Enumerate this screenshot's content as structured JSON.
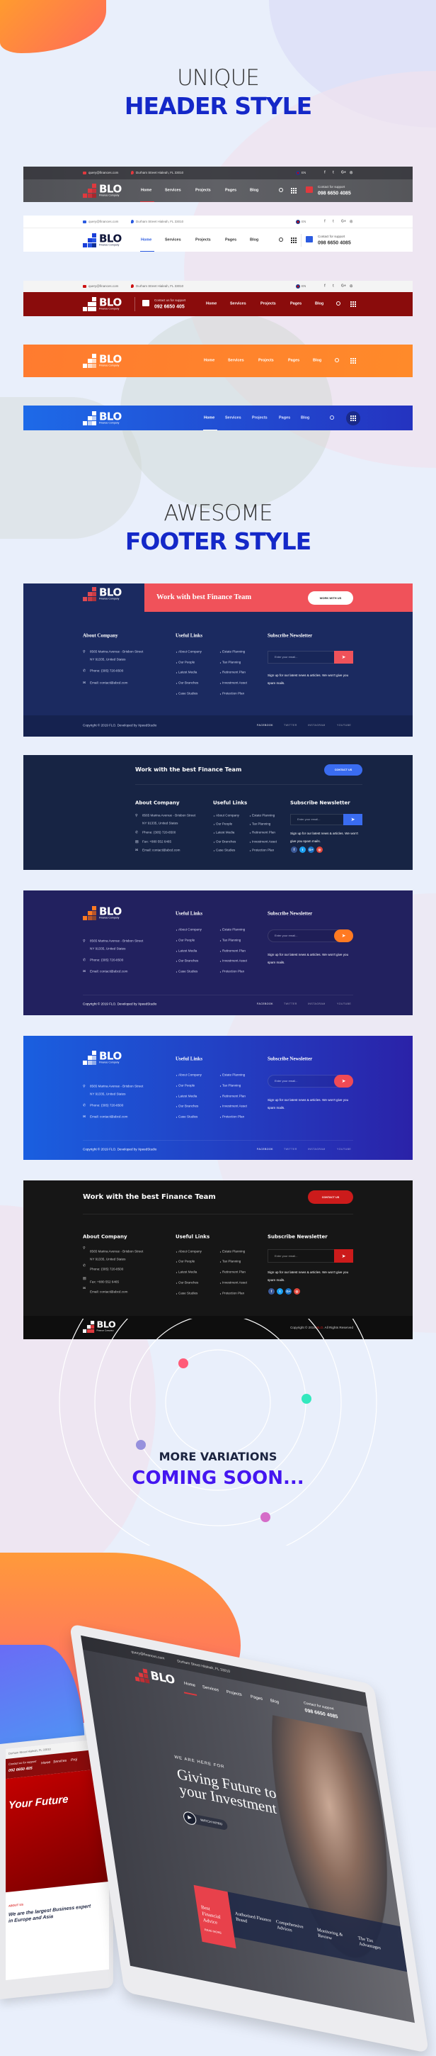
{
  "header_section": {
    "title_light": "UNIQUE",
    "title_bold": "HEADER STYLE"
  },
  "logo": {
    "name": "BLO",
    "tagline": "Finance Company"
  },
  "header_common": {
    "email": "query@finances.com",
    "address": "Durham Street Hialeah, FL 33010",
    "language": "EN",
    "social_icons": [
      "facebook-icon",
      "twitter-icon",
      "google-plus-icon",
      "instagram-icon"
    ],
    "social_glyphs": [
      "f",
      "t",
      "G+",
      "◎"
    ],
    "nav": [
      "Home",
      "Services",
      "Projects",
      "Pages",
      "Blog"
    ],
    "support": {
      "label": "Contact for support",
      "phone": "098 6650 4085"
    },
    "support_alt": {
      "label": "Contact us for support",
      "phone": "092 6650 405"
    }
  },
  "headers": [
    {
      "style": "dark",
      "active": "Home",
      "accent": "#e0393e"
    },
    {
      "style": "light",
      "active": "Home",
      "accent": "#2b5be0"
    },
    {
      "style": "maroon",
      "active": "Home",
      "accent": "#8a0c0c"
    },
    {
      "style": "orange",
      "active": "Home",
      "accent": "#ff7f2a"
    },
    {
      "style": "blue",
      "active": "Home",
      "accent": "#1f5fe4"
    }
  ],
  "footer_section": {
    "title_light": "AWESOME",
    "title_bold": "FOOTER STYLE"
  },
  "footer_common": {
    "about_title": "About Company",
    "address_line1": "8565 Marina Avenue - Brisbon Street",
    "address_line2": "NY 91335, United States",
    "phone": "Phone: (305) 720-8500",
    "fax": "Fax: +880 552 6465",
    "email": "Email: contact@abcd.com",
    "links_title": "Useful Links",
    "links_col1": [
      "About Company",
      "Our People",
      "Latest Media",
      "Our Branches",
      "Case Studies"
    ],
    "links_col2": [
      "Estate Planning",
      "Tax Planning",
      "Retirement Plan",
      "Investment Asset",
      "Protection Plan"
    ],
    "newsletter_title": "Subscribe Newsletter",
    "email_placeholder": "Enter your email...",
    "newsletter_text": "Sign up for our latest news & articles. We won't give you spam mails.",
    "social_links": [
      "FACEBOOK",
      "TWITTER",
      "INSTAGRAM",
      "YOUTUBE"
    ],
    "copyright": "Copyright © 2019 FLO. Developed by XpeedStudio",
    "copyright_alt": {
      "prefix": "Copyright © 2019 ",
      "brand": "BLO",
      "suffix": ". All Rights Reserved"
    }
  },
  "footers": [
    {
      "style": "navy-band",
      "cta": "Work with best Finance Team",
      "cta_button": "WORK WITH US",
      "accent": "#f0525a"
    },
    {
      "style": "dark-navy",
      "cta": "Work with the best Finance Team",
      "cta_button": "CONTACT US",
      "accent": "#3a6cf0"
    },
    {
      "style": "indigo",
      "accent": "#ff7a22"
    },
    {
      "style": "blue-gradient",
      "accent": "#f04a55"
    },
    {
      "style": "black",
      "cta": "Work with the best Finance Team",
      "cta_button": "CONTACT US",
      "accent": "#cc1b1b"
    }
  ],
  "coming_soon": {
    "line1": "MORE VARIATIONS",
    "line2": "COMING SOON..."
  },
  "laptop": {
    "eyebrow": "WE ARE HERE FOR",
    "headline": "Giving Future to your Investment",
    "watch": "WATCH INTRO",
    "cards": [
      "Best Financial Advice",
      "Authorised Finance Brand",
      "Compehensive Advices",
      "Monitoring & Review",
      "The Tax Advantages"
    ],
    "read_more": "READ MORE",
    "second": {
      "address": "Durham Street Hialeah, FL 33010",
      "support_label": "Contact us for support",
      "phone": "092 6650 405",
      "nav": [
        "Home",
        "Services",
        "Proj"
      ],
      "hero": "Your Future",
      "about_label": "ABOUT US",
      "about_text": "We are the largest Business expert in Europe and Asia"
    }
  }
}
